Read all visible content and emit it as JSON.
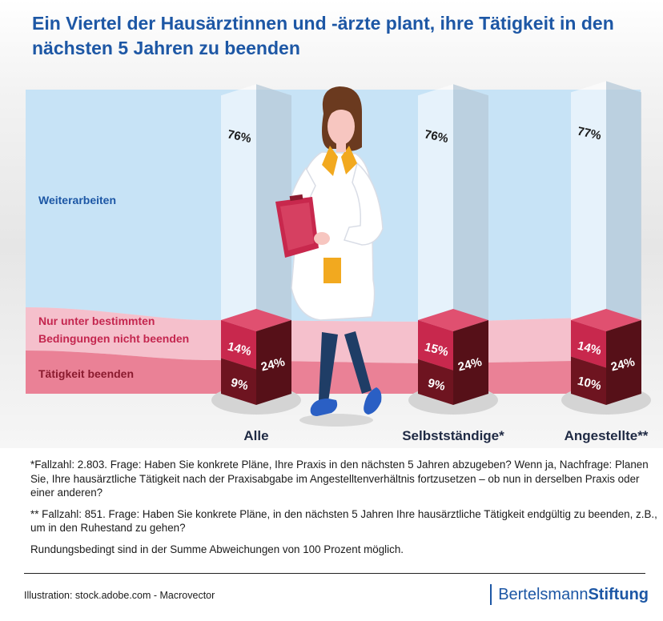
{
  "title": "Ein Viertel der Hausärztinnen und -ärzte plant, ihre Tätigkeit in den nächsten 5 Jahren zu beenden",
  "band_labels": {
    "continue": "Weiterarbeiten",
    "conditional_line1": "Nur unter bestimmten",
    "conditional_line2": "Bedingungen nicht beenden",
    "stop": "Tätigkeit beenden"
  },
  "colors": {
    "title": "#1d57a5",
    "continue_band": "#c7e3f6",
    "conditional_band": "#f5c0cc",
    "stop_band": "#ea8196",
    "continue_label": "#1d57a5",
    "conditional_label": "#c4264f",
    "stop_label": "#8a1a2e",
    "cube_front": "#c8284d",
    "cube_side": "#6e1420",
    "cube_top": "#e05070"
  },
  "chart_data": {
    "type": "bar",
    "categories": [
      "Alle",
      "Selbstständige*",
      "Angestellte**"
    ],
    "series": [
      {
        "name": "Weiterarbeiten",
        "values": [
          76,
          76,
          77
        ],
        "labels": [
          "76%",
          "76%",
          "77%"
        ]
      },
      {
        "name": "Nur unter bestimmten Bedingungen nicht beenden",
        "values": [
          14,
          15,
          14
        ],
        "labels": [
          "14%",
          "15%",
          "14%"
        ]
      },
      {
        "name": "Tätigkeit beenden",
        "values": [
          9,
          9,
          10
        ],
        "labels": [
          "9%",
          "9%",
          "10%"
        ]
      }
    ],
    "totals": {
      "values": [
        24,
        24,
        24
      ],
      "labels": [
        "24%",
        "24%",
        "24%"
      ]
    },
    "ylim": [
      0,
      100
    ]
  },
  "notes": {
    "n1": "*Fallzahl: 2.803. Frage: Haben Sie konkrete Pläne, Ihre Praxis in den nächsten 5 Jahren abzugeben? Wenn ja, Nachfrage: Planen Sie, Ihre hausärztliche Tätigkeit nach der Praxisabgabe im Angestelltenverhältnis fortzusetzen – ob nun in derselben Praxis oder einer anderen?",
    "n2": "** Fallzahl: 851. Frage: Haben Sie konkrete Pläne, in den nächsten 5 Jahren Ihre hausärztliche Tätigkeit endgültig zu beenden, z.B., um in den Ruhestand zu gehen?",
    "n3": "Rundungsbedingt sind in der Summe Abweichungen von 100 Prozent möglich."
  },
  "credit": "Illustration: stock.adobe.com - Macrovector",
  "logo": {
    "part1": "Bertelsmann",
    "part2": "Stiftung"
  }
}
